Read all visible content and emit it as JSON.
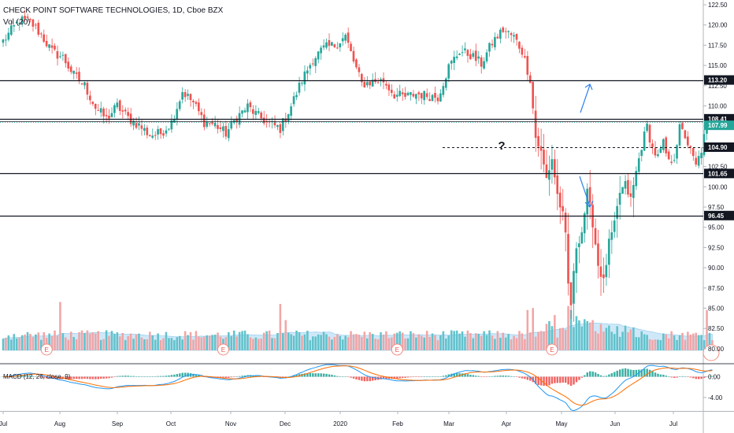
{
  "header": {
    "title": "CHECK POINT SOFTWARE TECHNOLOGIES, 1D, Cboe BZX",
    "volume_label": "Vol (20)"
  },
  "colors": {
    "up": "#26a69a",
    "down": "#ef5350",
    "vol_up": "#5bc0c8",
    "vol_down": "#f2a0a0",
    "vol_ma": "#bfe0f5",
    "macd_line": "#2196f3",
    "signal_line": "#ff6d00",
    "axis_text": "#131722",
    "grid": "#e0e3eb"
  },
  "chart_data": [
    {
      "type": "candlestick",
      "title": "CHECK POINT SOFTWARE TECHNOLOGIES, 1D, Cboe BZX",
      "xlabel": "",
      "ylabel": "",
      "x_tick_labels": [
        "Jul",
        "Aug",
        "Sep",
        "Oct",
        "Nov",
        "Dec",
        "2020",
        "Feb",
        "Mar",
        "Apr",
        "May",
        "Jun",
        "Jul"
      ],
      "y_tick_labels": [
        "122.50",
        "120.00",
        "117.50",
        "115.00",
        "112.50",
        "110.00",
        "107.50",
        "105.00",
        "102.50",
        "100.00",
        "97.50",
        "95.00",
        "92.50",
        "90.00",
        "87.50",
        "85.00",
        "82.50",
        "80.00"
      ],
      "ylim": [
        78.6,
        123.3
      ],
      "grid": false,
      "horizontal_levels": [
        {
          "label": "113.20",
          "value": 113.2
        },
        {
          "label": "108.41",
          "value": 108.41
        },
        {
          "label": "104.90",
          "value": 104.9,
          "style": "dashed"
        },
        {
          "label": "101.65",
          "value": 101.65
        },
        {
          "label": "96.45",
          "value": 96.45
        }
      ],
      "last_price": {
        "label": "107.99",
        "value": 107.99
      },
      "annotations": [
        "?"
      ],
      "earnings_markers": [
        "E",
        "E",
        "E",
        "E"
      ],
      "close_path": [
        {
          "t": 0,
          "v": 118.0
        },
        {
          "t": 6,
          "v": 120.6
        },
        {
          "t": 10,
          "v": 120.4
        },
        {
          "t": 14,
          "v": 118.8
        },
        {
          "t": 18,
          "v": 116.7
        },
        {
          "t": 22,
          "v": 116.0
        },
        {
          "t": 26,
          "v": 113.8
        },
        {
          "t": 30,
          "v": 112.5
        },
        {
          "t": 34,
          "v": 109.8
        },
        {
          "t": 38,
          "v": 108.4
        },
        {
          "t": 42,
          "v": 110.0
        },
        {
          "t": 46,
          "v": 108.5
        },
        {
          "t": 50,
          "v": 107.6
        },
        {
          "t": 54,
          "v": 106.4
        },
        {
          "t": 58,
          "v": 106.6
        },
        {
          "t": 62,
          "v": 108.0
        },
        {
          "t": 66,
          "v": 111.8
        },
        {
          "t": 70,
          "v": 110.4
        },
        {
          "t": 74,
          "v": 108.0
        },
        {
          "t": 78,
          "v": 107.7
        },
        {
          "t": 82,
          "v": 106.6
        },
        {
          "t": 86,
          "v": 108.6
        },
        {
          "t": 90,
          "v": 109.9
        },
        {
          "t": 94,
          "v": 108.7
        },
        {
          "t": 98,
          "v": 107.8
        },
        {
          "t": 102,
          "v": 107.2
        },
        {
          "t": 106,
          "v": 110.0
        },
        {
          "t": 110,
          "v": 113.2
        },
        {
          "t": 114,
          "v": 115.8
        },
        {
          "t": 118,
          "v": 117.1
        },
        {
          "t": 122,
          "v": 117.5
        },
        {
          "t": 126,
          "v": 118.6
        },
        {
          "t": 129,
          "v": 115.5
        },
        {
          "t": 132,
          "v": 112.7
        },
        {
          "t": 136,
          "v": 113.0
        },
        {
          "t": 140,
          "v": 113.1
        },
        {
          "t": 144,
          "v": 111.4
        },
        {
          "t": 148,
          "v": 111.1
        },
        {
          "t": 152,
          "v": 111.5
        },
        {
          "t": 156,
          "v": 111.3
        },
        {
          "t": 160,
          "v": 111.1
        },
        {
          "t": 164,
          "v": 114.8
        },
        {
          "t": 168,
          "v": 116.8
        },
        {
          "t": 172,
          "v": 116.3
        },
        {
          "t": 176,
          "v": 115.2
        },
        {
          "t": 180,
          "v": 117.8
        },
        {
          "t": 184,
          "v": 119.4
        },
        {
          "t": 188,
          "v": 118.5
        },
        {
          "t": 191,
          "v": 116.8
        },
        {
          "t": 194,
          "v": 113.3
        },
        {
          "t": 196,
          "v": 106.1
        },
        {
          "t": 198,
          "v": 104.2
        },
        {
          "t": 200,
          "v": 101.0
        },
        {
          "t": 202,
          "v": 103.5
        },
        {
          "t": 204,
          "v": 99.0
        },
        {
          "t": 206,
          "v": 96.4
        },
        {
          "t": 207,
          "v": 93.8
        },
        {
          "t": 208,
          "v": 87.9
        },
        {
          "t": 209,
          "v": 85.5
        },
        {
          "t": 211,
          "v": 92.7
        },
        {
          "t": 213,
          "v": 94.5
        },
        {
          "t": 215,
          "v": 99.2
        },
        {
          "t": 217,
          "v": 95.6
        },
        {
          "t": 219,
          "v": 90.4
        },
        {
          "t": 221,
          "v": 88.2
        },
        {
          "t": 223,
          "v": 93.0
        },
        {
          "t": 225,
          "v": 95.2
        },
        {
          "t": 227,
          "v": 99.3
        },
        {
          "t": 229,
          "v": 100.2
        },
        {
          "t": 231,
          "v": 98.4
        },
        {
          "t": 233,
          "v": 101.8
        },
        {
          "t": 235,
          "v": 105.1
        },
        {
          "t": 237,
          "v": 107.5
        },
        {
          "t": 239,
          "v": 104.7
        },
        {
          "t": 241,
          "v": 103.6
        },
        {
          "t": 243,
          "v": 105.3
        },
        {
          "t": 245,
          "v": 102.9
        },
        {
          "t": 247,
          "v": 103.8
        },
        {
          "t": 249,
          "v": 107.2
        },
        {
          "t": 251,
          "v": 106.3
        },
        {
          "t": 253,
          "v": 104.4
        },
        {
          "t": 255,
          "v": 102.5
        },
        {
          "t": 257,
          "v": 104.6
        },
        {
          "t": 259,
          "v": 107.6
        },
        {
          "t": 261,
          "v": 107.99
        }
      ]
    },
    {
      "type": "bar",
      "title": "Vol (20)",
      "ylim": [
        0,
        50
      ],
      "tall_bars": [
        {
          "t": 21,
          "v": 48,
          "dir": "down"
        },
        {
          "t": 102,
          "v": 46,
          "dir": "down"
        },
        {
          "t": 104,
          "v": 30,
          "dir": "down"
        },
        {
          "t": 193,
          "v": 40,
          "dir": "down"
        },
        {
          "t": 195,
          "v": 42,
          "dir": "down"
        },
        {
          "t": 203,
          "v": 35,
          "dir": "down"
        },
        {
          "t": 208,
          "v": 44,
          "dir": "down"
        },
        {
          "t": 209,
          "v": 40,
          "dir": "up"
        },
        {
          "t": 211,
          "v": 34,
          "dir": "up"
        },
        {
          "t": 217,
          "v": 30,
          "dir": "down"
        },
        {
          "t": 220,
          "v": 26,
          "dir": "down"
        },
        {
          "t": 259,
          "v": 40,
          "dir": "down"
        }
      ]
    },
    {
      "type": "line",
      "title": "MACD (12, 26, close, 9)",
      "y_tick_labels": [
        "0.00",
        "-4.00"
      ],
      "ylim": [
        -5.4,
        2.0
      ]
    }
  ]
}
